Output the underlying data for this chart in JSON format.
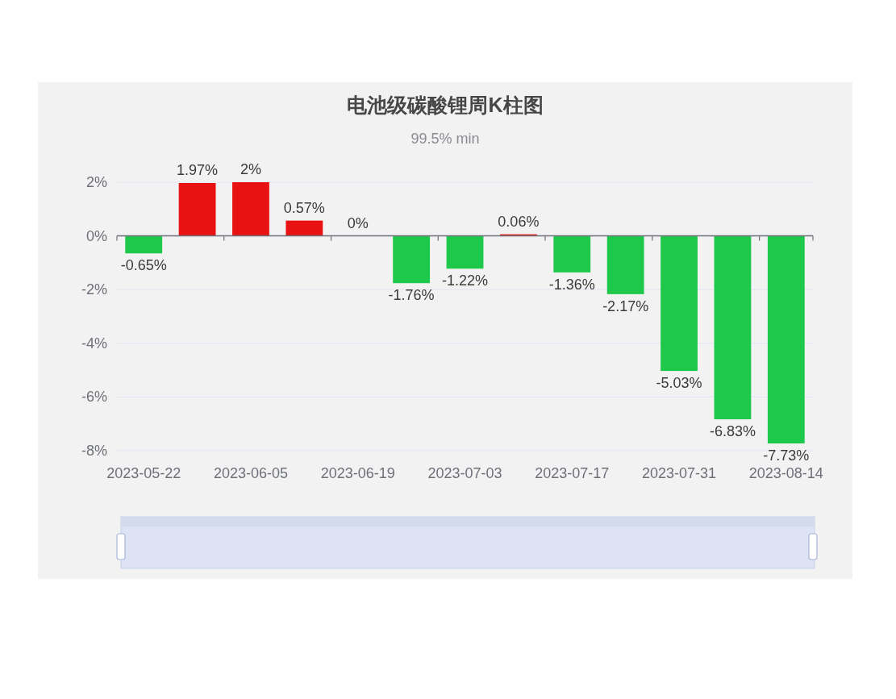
{
  "chart_data": {
    "type": "bar",
    "title": "电池级碳酸锂周K柱图",
    "subtitle": "99.5% min",
    "categories": [
      "2023-05-22",
      null,
      "2023-06-05",
      null,
      "2023-06-19",
      null,
      "2023-07-03",
      null,
      "2023-07-17",
      null,
      "2023-07-31",
      null,
      "2023-08-14"
    ],
    "values": [
      -0.65,
      1.97,
      2,
      0.57,
      0,
      -1.76,
      -1.22,
      0.06,
      -1.36,
      -2.17,
      -5.03,
      -6.83,
      -7.73
    ],
    "colors": [
      "#1ec84a",
      "#e81213",
      "#e81213",
      "#e81213",
      "#e81213",
      "#1ec84a",
      "#1ec84a",
      "#e81213",
      "#1ec84a",
      "#1ec84a",
      "#1ec84a",
      "#1ec84a",
      "#1ec84a"
    ],
    "value_labels": [
      "-0.65%",
      "1.97%",
      "2%",
      "0.57%",
      "0%",
      "-1.76%",
      "-1.22%",
      "0.06%",
      "-1.36%",
      "-2.17%",
      "-5.03%",
      "-6.83%",
      "-7.73%"
    ],
    "ylim": [
      -8,
      2
    ],
    "yticks": [
      {
        "value": -8,
        "label": "-8%"
      },
      {
        "value": -6,
        "label": "-6%"
      },
      {
        "value": -4,
        "label": "-4%"
      },
      {
        "value": -2,
        "label": "-2%"
      },
      {
        "value": 0,
        "label": "0%"
      },
      {
        "value": 2,
        "label": "2%"
      }
    ],
    "grid": "y"
  }
}
